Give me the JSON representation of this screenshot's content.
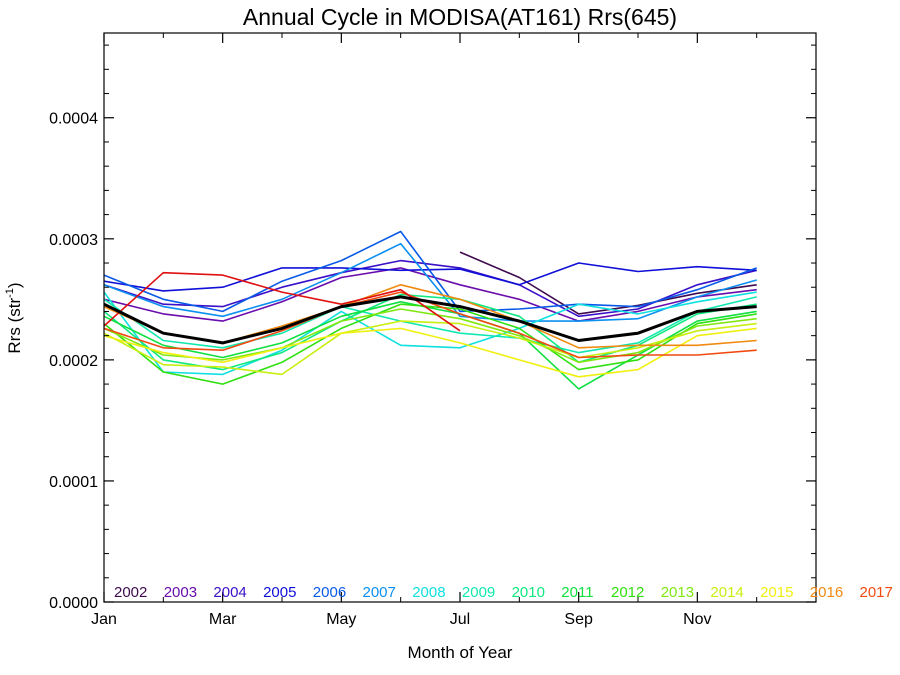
{
  "chart_data": {
    "type": "line",
    "title": "Annual Cycle in MODISA(AT161) Rrs(645)",
    "xlabel": "Month of Year",
    "ylabel": "Rrs (str",
    "ylabel_sup": "-1",
    "ylabel_close": ")",
    "xlim": [
      1,
      13
    ],
    "ylim": [
      0.0,
      0.00047
    ],
    "x_ticks": [
      1,
      3,
      5,
      7,
      9,
      11
    ],
    "x_tick_labels": [
      "Jan",
      "Mar",
      "May",
      "Jul",
      "Sep",
      "Nov"
    ],
    "y_ticks": [
      0.0,
      0.0001,
      0.0002,
      0.0003,
      0.0004
    ],
    "y_tick_labels": [
      "0.0000",
      "0.0001",
      "0.0002",
      "0.0003",
      "0.0004"
    ],
    "legend_placement": "bottom",
    "x": [
      1,
      2,
      3,
      4,
      5,
      6,
      7,
      8,
      9,
      10,
      11,
      12
    ],
    "series": [
      {
        "name": "2002",
        "color": "#3f0a4f",
        "values": [
          null,
          null,
          null,
          null,
          null,
          null,
          0.000289,
          0.000268,
          0.000238,
          0.000245,
          0.000255,
          0.000262
        ]
      },
      {
        "name": "2003",
        "color": "#6a0dad",
        "values": [
          0.00025,
          0.000238,
          0.000232,
          0.000248,
          0.000268,
          0.000276,
          0.000262,
          0.00025,
          0.000232,
          0.00024,
          0.000252,
          0.000258
        ]
      },
      {
        "name": "2004",
        "color": "#3a10c8",
        "values": [
          0.000262,
          0.000246,
          0.000244,
          0.00026,
          0.000272,
          0.000282,
          0.000276,
          0.000262,
          0.000236,
          0.000242,
          0.000262,
          0.000274
        ]
      },
      {
        "name": "2005",
        "color": "#1010d8",
        "values": [
          0.000265,
          0.000257,
          0.00026,
          0.000276,
          0.000276,
          0.000274,
          0.000275,
          0.000262,
          0.00028,
          0.000273,
          0.000277,
          0.000274
        ]
      },
      {
        "name": "2006",
        "color": "#0a5ae8",
        "values": [
          0.00027,
          0.00025,
          0.00024,
          0.000265,
          0.000282,
          0.000306,
          0.00024,
          0.000242,
          0.000246,
          0.000244,
          0.000258,
          0.000276
        ]
      },
      {
        "name": "2007",
        "color": "#0a90f0",
        "values": [
          0.000262,
          0.000244,
          0.000236,
          0.00025,
          0.000272,
          0.000296,
          0.000236,
          0.000232,
          0.000232,
          0.000234,
          0.000252,
          0.000266
        ]
      },
      {
        "name": "2008",
        "color": "#10e0e0",
        "values": [
          0.000256,
          0.00019,
          0.000188,
          0.000208,
          0.00024,
          0.000212,
          0.00021,
          0.000226,
          0.000246,
          0.000238,
          0.000248,
          0.000256
        ]
      },
      {
        "name": "2009",
        "color": "#10e8b0",
        "values": [
          0.00025,
          0.000216,
          0.00021,
          0.000222,
          0.000244,
          0.000232,
          0.000222,
          0.000218,
          0.000206,
          0.000214,
          0.00024,
          0.000252
        ]
      },
      {
        "name": "2010",
        "color": "#10e880",
        "values": [
          0.00024,
          0.0002,
          0.000192,
          0.000206,
          0.000232,
          0.000254,
          0.00025,
          0.000236,
          0.000198,
          0.000212,
          0.000238,
          0.000246
        ]
      },
      {
        "name": "2011",
        "color": "#10e040",
        "values": [
          0.000236,
          0.000212,
          0.000202,
          0.000214,
          0.000236,
          0.000248,
          0.000238,
          0.000222,
          0.000176,
          0.000204,
          0.000232,
          0.00024
        ]
      },
      {
        "name": "2012",
        "color": "#30e010",
        "values": [
          0.00023,
          0.00019,
          0.00018,
          0.000198,
          0.000226,
          0.000246,
          0.000242,
          0.000226,
          0.000192,
          0.0002,
          0.00023,
          0.000238
        ]
      },
      {
        "name": "2013",
        "color": "#80e810",
        "values": [
          0.000226,
          0.000204,
          0.0002,
          0.00021,
          0.000232,
          0.000242,
          0.000234,
          0.00022,
          0.000198,
          0.000206,
          0.000228,
          0.000234
        ]
      },
      {
        "name": "2014",
        "color": "#c8ef10",
        "values": [
          0.000222,
          0.000196,
          0.000194,
          0.000188,
          0.000222,
          0.000232,
          0.00023,
          0.000218,
          0.000202,
          0.00021,
          0.000224,
          0.00023
        ]
      },
      {
        "name": "2015",
        "color": "#f0f010",
        "values": [
          0.00022,
          0.000206,
          0.000198,
          0.00021,
          0.000222,
          0.000226,
          0.000214,
          0.0002,
          0.000186,
          0.000192,
          0.00022,
          0.000226
        ]
      },
      {
        "name": "2016",
        "color": "#f08a10",
        "values": [
          0.000244,
          0.000222,
          0.000214,
          0.000228,
          0.000244,
          0.000262,
          0.00025,
          0.000232,
          0.00021,
          0.000212,
          0.000212,
          0.000216
        ]
      },
      {
        "name": "2017",
        "color": "#f04a10",
        "values": [
          0.000226,
          0.00021,
          0.000208,
          0.000224,
          0.000244,
          0.000256,
          0.000238,
          0.000222,
          0.000202,
          0.000204,
          0.000204,
          0.000208
        ]
      },
      {
        "color": "#e01010",
        "values": [
          0.000228,
          0.000272,
          0.00027,
          0.000256,
          0.000246,
          0.000258,
          0.000224,
          null,
          null,
          null,
          null,
          null
        ]
      },
      {
        "color": "#000000",
        "width": 3,
        "values": [
          0.000246,
          0.000222,
          0.000214,
          0.000226,
          0.000244,
          0.000252,
          0.000244,
          0.000232,
          0.000216,
          0.000222,
          0.00024,
          0.000244
        ]
      }
    ]
  }
}
